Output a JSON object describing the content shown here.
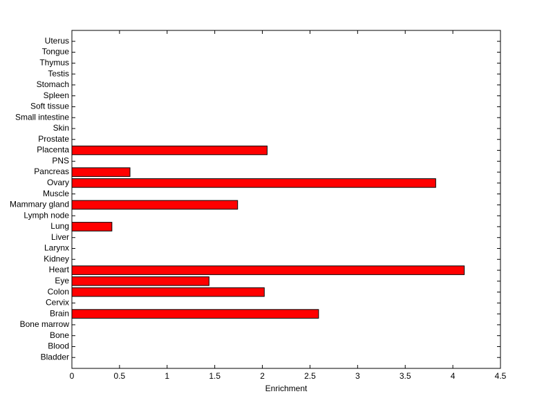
{
  "chart_data": {
    "type": "barh",
    "xlabel": "Enrichment",
    "categories": [
      "Bladder",
      "Blood",
      "Bone",
      "Bone marrow",
      "Brain",
      "Cervix",
      "Colon",
      "Eye",
      "Heart",
      "Kidney",
      "Larynx",
      "Liver",
      "Lung",
      "Lymph node",
      "Mammary gland",
      "Muscle",
      "Ovary",
      "Pancreas",
      "PNS",
      "Placenta",
      "Prostate",
      "Skin",
      "Small intestine",
      "Soft tissue",
      "Spleen",
      "Stomach",
      "Testis",
      "Thymus",
      "Tongue",
      "Uterus"
    ],
    "values": [
      0,
      0,
      0,
      0,
      2.59,
      0,
      2.02,
      1.44,
      4.12,
      0,
      0,
      0,
      0.42,
      0,
      1.74,
      0,
      3.82,
      0.61,
      0,
      2.05,
      0,
      0,
      0,
      0,
      0,
      0,
      0,
      0,
      0,
      0
    ],
    "color": "#ff0000",
    "xlim": [
      0,
      4.5
    ],
    "xticks": [
      0,
      0.5,
      1,
      1.5,
      2,
      2.5,
      3,
      3.5,
      4,
      4.5
    ],
    "grid": false
  }
}
